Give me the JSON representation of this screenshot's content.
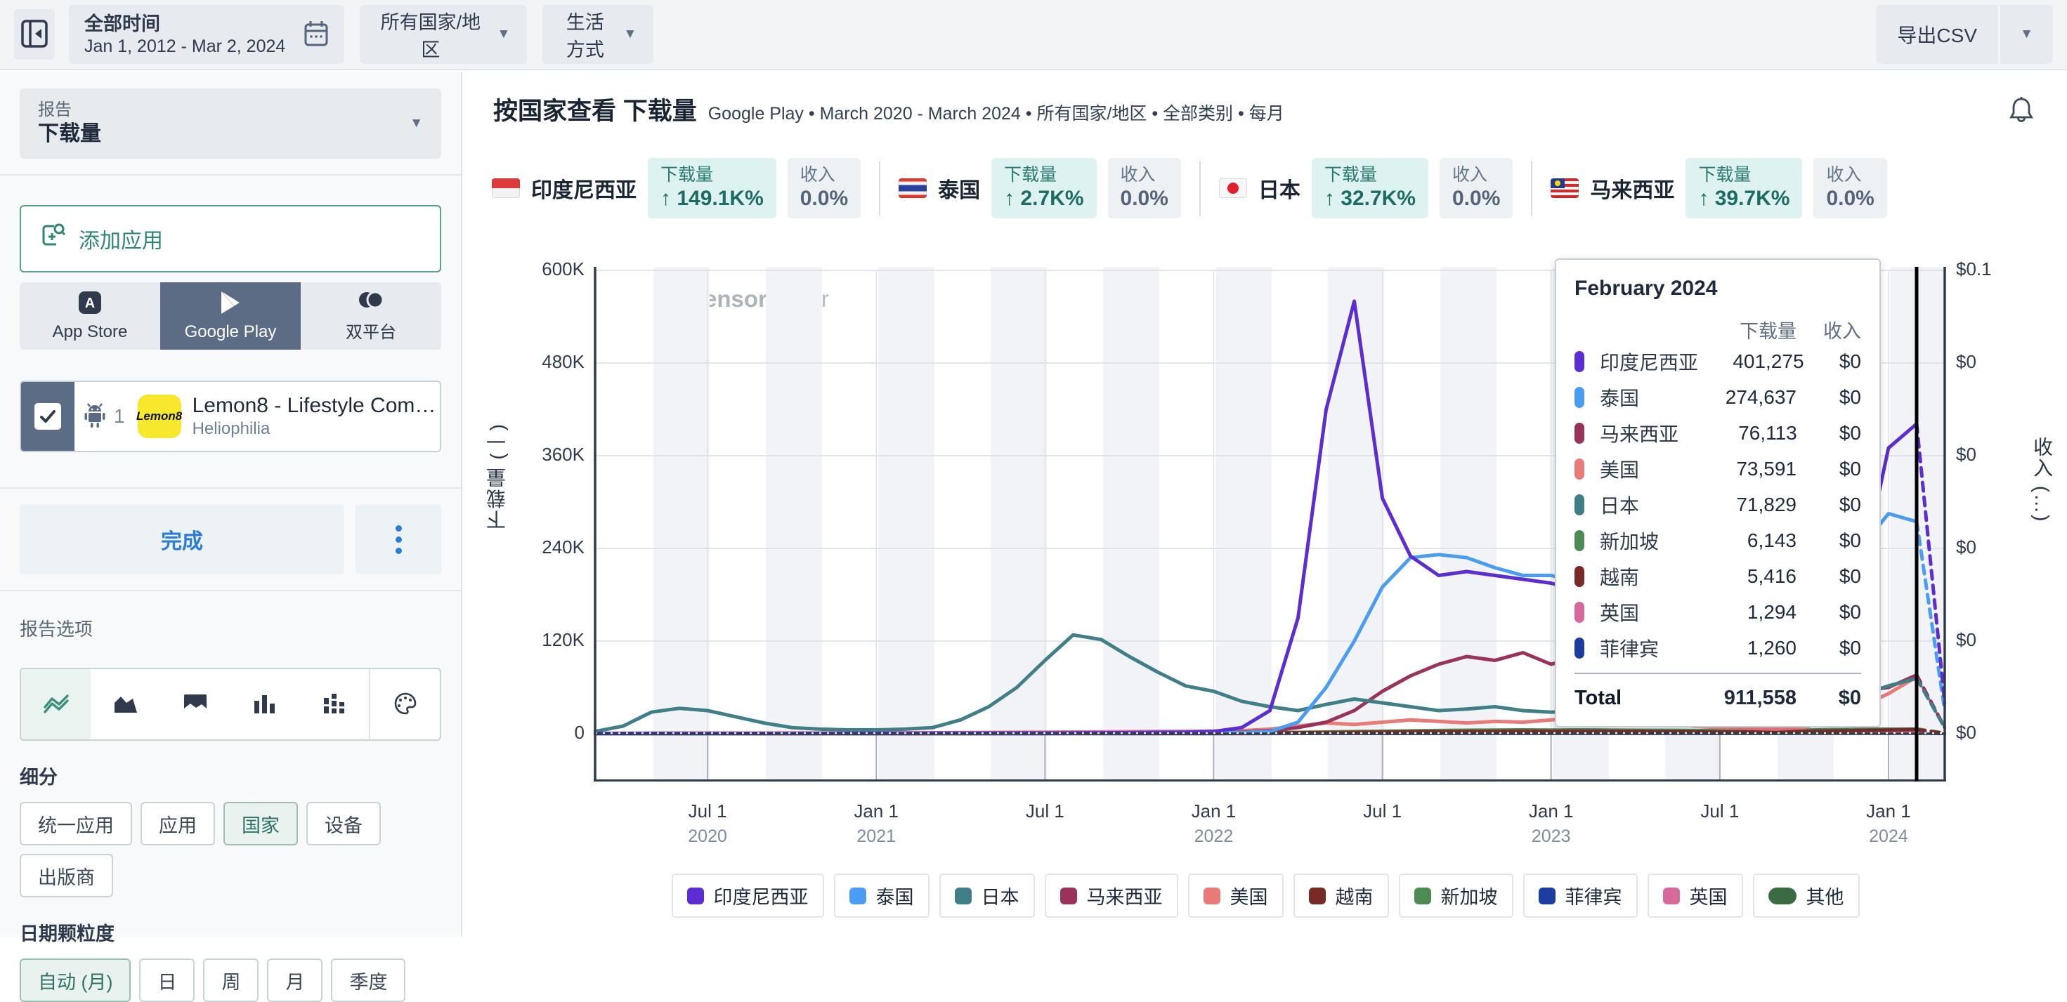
{
  "topbar": {
    "date_filter_label": "全部时间",
    "date_range": "Jan 1, 2012 - Mar 2, 2024",
    "region_filter": "所有国家/地区",
    "category_filter": "生活方式",
    "export_label": "导出CSV"
  },
  "sidebar": {
    "report_label": "报告",
    "report_value": "下载量",
    "add_app_label": "添加应用",
    "platform_tabs": [
      {
        "label": "App Store",
        "icon": "app-store-icon",
        "selected": false
      },
      {
        "label": "Google Play",
        "icon": "google-play-icon",
        "selected": true
      },
      {
        "label": "双平台",
        "icon": "dual-platform-icon",
        "selected": false
      }
    ],
    "app": {
      "checked": true,
      "rank": "1",
      "icon_text": "Lemon8",
      "icon_bg": "#f6e82d",
      "name": "Lemon8 - Lifestyle Com…",
      "publisher": "Heliophilia"
    },
    "done_label": "完成",
    "report_options_label": "报告选项",
    "chart_types": [
      {
        "icon": "line-chart-icon",
        "selected": true
      },
      {
        "icon": "area-chart-icon",
        "selected": false
      },
      {
        "icon": "stacked-area-chart-icon",
        "selected": false
      },
      {
        "icon": "bar-chart-icon",
        "selected": false
      },
      {
        "icon": "stacked-bar-chart-icon",
        "selected": false
      }
    ],
    "palette_icon": "palette-icon",
    "segment_label": "细分",
    "segments": [
      {
        "label": "统一应用",
        "selected": false
      },
      {
        "label": "应用",
        "selected": false
      },
      {
        "label": "国家",
        "selected": true
      },
      {
        "label": "设备",
        "selected": false
      },
      {
        "label": "出版商",
        "selected": false
      }
    ],
    "granularity_label": "日期颗粒度",
    "granularities": [
      {
        "label": "自动 (月)",
        "selected": true
      },
      {
        "label": "日",
        "selected": false
      },
      {
        "label": "周",
        "selected": false
      },
      {
        "label": "月",
        "selected": false
      },
      {
        "label": "季度",
        "selected": false
      }
    ]
  },
  "main": {
    "title": "按国家查看 下载量",
    "subtitle": "Google Play • March 2020 - March 2024 • 所有国家/地区 • 全部类别 • 每月",
    "watermark_a": "Sensor",
    "watermark_b": "Tower",
    "stats": [
      {
        "country": "印度尼西亚",
        "flag": "id",
        "downloads_label": "下载量",
        "downloads_change": "↑ 149.1K%",
        "revenue_label": "收入",
        "revenue_change": "0.0%"
      },
      {
        "country": "泰国",
        "flag": "th",
        "downloads_label": "下载量",
        "downloads_change": "↑ 2.7K%",
        "revenue_label": "收入",
        "revenue_change": "0.0%"
      },
      {
        "country": "日本",
        "flag": "jp",
        "downloads_label": "下载量",
        "downloads_change": "↑ 32.7K%",
        "revenue_label": "收入",
        "revenue_change": "0.0%"
      },
      {
        "country": "马来西亚",
        "flag": "my",
        "downloads_label": "下载量",
        "downloads_change": "↑ 39.7K%",
        "revenue_label": "收入",
        "revenue_change": "0.0%"
      }
    ]
  },
  "tooltip": {
    "title": "February 2024",
    "col_downloads": "下载量",
    "col_revenue": "收入",
    "rows": [
      {
        "label": "印度尼西亚",
        "color": "#5c2dd1",
        "downloads": "401,275",
        "revenue": "$0"
      },
      {
        "label": "泰国",
        "color": "#4a9df2",
        "downloads": "274,637",
        "revenue": "$0"
      },
      {
        "label": "马来西亚",
        "color": "#993359",
        "downloads": "76,113",
        "revenue": "$0"
      },
      {
        "label": "美国",
        "color": "#e87b78",
        "downloads": "73,591",
        "revenue": "$0"
      },
      {
        "label": "日本",
        "color": "#417f88",
        "downloads": "71,829",
        "revenue": "$0"
      },
      {
        "label": "新加坡",
        "color": "#4e8b54",
        "downloads": "6,143",
        "revenue": "$0"
      },
      {
        "label": "越南",
        "color": "#772a26",
        "downloads": "5,416",
        "revenue": "$0"
      },
      {
        "label": "英国",
        "color": "#d76a9c",
        "downloads": "1,294",
        "revenue": "$0"
      },
      {
        "label": "菲律宾",
        "color": "#1d3da1",
        "downloads": "1,260",
        "revenue": "$0"
      }
    ],
    "total_label": "Total",
    "total_downloads": "911,558",
    "total_revenue": "$0"
  },
  "chart_data": {
    "type": "line",
    "title": "按国家查看 下载量",
    "ylabel_left": "下载量 (一)",
    "ylabel_right": "收入 (…)",
    "ylim": [
      0,
      600000
    ],
    "grid": true,
    "legend_position": "bottom",
    "hovered_point": "2024-02",
    "yticks_left": [
      "600K",
      "480K",
      "360K",
      "240K",
      "120K",
      "0"
    ],
    "yticks_right": [
      "$0.1",
      "$0",
      "$0",
      "$0",
      "$0",
      "$0"
    ],
    "xticks": [
      {
        "i": 4,
        "l1": "Jul 1",
        "l2": "2020"
      },
      {
        "i": 10,
        "l1": "Jan 1",
        "l2": "2021"
      },
      {
        "i": 16,
        "l1": "Jul 1",
        "l2": ""
      },
      {
        "i": 22,
        "l1": "Jan 1",
        "l2": "2022"
      },
      {
        "i": 28,
        "l1": "Jul 1",
        "l2": ""
      },
      {
        "i": 34,
        "l1": "Jan 1",
        "l2": "2023"
      },
      {
        "i": 40,
        "l1": "Jul 1",
        "l2": ""
      },
      {
        "i": 46,
        "l1": "Jan 1",
        "l2": "2024"
      }
    ],
    "months": [
      "2020-03",
      "2020-04",
      "2020-05",
      "2020-06",
      "2020-07",
      "2020-08",
      "2020-09",
      "2020-10",
      "2020-11",
      "2020-12",
      "2021-01",
      "2021-02",
      "2021-03",
      "2021-04",
      "2021-05",
      "2021-06",
      "2021-07",
      "2021-08",
      "2021-09",
      "2021-10",
      "2021-11",
      "2021-12",
      "2022-01",
      "2022-02",
      "2022-03",
      "2022-04",
      "2022-05",
      "2022-06",
      "2022-07",
      "2022-08",
      "2022-09",
      "2022-10",
      "2022-11",
      "2022-12",
      "2023-01",
      "2023-02",
      "2023-03",
      "2023-04",
      "2023-05",
      "2023-06",
      "2023-07",
      "2023-08",
      "2023-09",
      "2023-10",
      "2023-11",
      "2023-12",
      "2024-01",
      "2024-02",
      "2024-03"
    ],
    "render_order": [
      "other",
      "ph",
      "gb",
      "sg",
      "vn",
      "us",
      "my",
      "jp",
      "th",
      "id"
    ],
    "legend_order": [
      "id",
      "th",
      "jp",
      "my",
      "us",
      "vn",
      "sg",
      "ph",
      "gb",
      "other"
    ],
    "series": [
      {
        "id": "id",
        "name": "印度尼西亚",
        "color": "#5c2dd1",
        "values": [
          300,
          300,
          400,
          400,
          500,
          500,
          500,
          500,
          500,
          500,
          600,
          600,
          700,
          800,
          900,
          1000,
          1000,
          1200,
          1300,
          1500,
          1800,
          2000,
          3000,
          8000,
          30000,
          150000,
          420000,
          560000,
          305000,
          230000,
          205000,
          210000,
          205000,
          200000,
          195000,
          185000,
          165000,
          150000,
          135000,
          120000,
          115000,
          110000,
          105000,
          112000,
          140000,
          200000,
          370000,
          401275,
          40000
        ]
      },
      {
        "id": "th",
        "name": "泰国",
        "color": "#4a9df2",
        "values": [
          100,
          150,
          200,
          200,
          250,
          250,
          300,
          300,
          300,
          350,
          350,
          400,
          400,
          450,
          500,
          500,
          550,
          600,
          600,
          700,
          800,
          900,
          1000,
          1500,
          3000,
          15000,
          60000,
          120000,
          190000,
          228000,
          232000,
          228000,
          215000,
          205000,
          205000,
          195000,
          175000,
          160000,
          150000,
          140000,
          135000,
          140000,
          150000,
          170000,
          205000,
          240000,
          285000,
          274637,
          30000
        ]
      },
      {
        "id": "jp",
        "name": "日本",
        "color": "#417f88",
        "values": [
          3000,
          10000,
          28000,
          33000,
          30000,
          22000,
          14000,
          8000,
          6000,
          5000,
          5000,
          6000,
          8000,
          18000,
          35000,
          60000,
          95000,
          128000,
          122000,
          100000,
          80000,
          62000,
          55000,
          42000,
          35000,
          30000,
          38000,
          45000,
          40000,
          35000,
          30000,
          32000,
          35000,
          30000,
          28000,
          30000,
          26000,
          24000,
          22000,
          20000,
          18000,
          18000,
          20000,
          25000,
          35000,
          50000,
          62000,
          71829,
          8000
        ]
      },
      {
        "id": "my",
        "name": "马来西亚",
        "color": "#993359",
        "values": [
          200,
          250,
          300,
          300,
          350,
          350,
          400,
          400,
          450,
          500,
          500,
          550,
          600,
          650,
          700,
          750,
          800,
          850,
          900,
          950,
          1000,
          1100,
          1200,
          2000,
          4000,
          8000,
          15000,
          30000,
          55000,
          75000,
          90000,
          100000,
          95000,
          105000,
          90000,
          100000,
          95000,
          85000,
          45000,
          30000,
          28000,
          26000,
          25000,
          28000,
          40000,
          55000,
          60000,
          76113,
          8000
        ]
      },
      {
        "id": "us",
        "name": "美国",
        "color": "#e87b78",
        "values": [
          500,
          600,
          700,
          800,
          800,
          900,
          900,
          1000,
          1000,
          1100,
          1200,
          1300,
          1400,
          1500,
          1700,
          1900,
          2100,
          2300,
          2500,
          2700,
          2900,
          3100,
          3500,
          4000,
          6000,
          10000,
          14000,
          12000,
          15000,
          18000,
          16000,
          14000,
          16000,
          15000,
          18000,
          20000,
          25000,
          125000,
          18000,
          10000,
          8000,
          7000,
          6000,
          8000,
          18000,
          35000,
          52000,
          73591,
          8000
        ]
      },
      {
        "id": "vn",
        "name": "越南",
        "color": "#772a26",
        "values": [
          100,
          120,
          150,
          150,
          180,
          180,
          200,
          200,
          220,
          250,
          250,
          280,
          300,
          320,
          350,
          380,
          400,
          420,
          450,
          480,
          500,
          550,
          600,
          700,
          900,
          1200,
          1500,
          1800,
          2100,
          2400,
          2600,
          2800,
          3000,
          3200,
          3000,
          3200,
          3000,
          2800,
          2600,
          2400,
          2200,
          2300,
          2500,
          2800,
          3500,
          4200,
          4800,
          5416,
          600
        ]
      },
      {
        "id": "sg",
        "name": "新加坡",
        "color": "#4e8b54",
        "values": [
          150,
          180,
          220,
          250,
          250,
          280,
          280,
          300,
          320,
          350,
          380,
          400,
          420,
          450,
          480,
          500,
          550,
          600,
          650,
          700,
          750,
          800,
          900,
          1100,
          1400,
          1800,
          2300,
          2800,
          3300,
          3800,
          4200,
          4500,
          4800,
          5000,
          4800,
          5000,
          4800,
          4600,
          4400,
          4200,
          4000,
          4100,
          4300,
          4700,
          5300,
          5800,
          6000,
          6143,
          700
        ]
      },
      {
        "id": "ph",
        "name": "菲律宾",
        "color": "#1d3da1",
        "values": [
          40,
          50,
          60,
          70,
          70,
          80,
          80,
          90,
          90,
          100,
          110,
          120,
          130,
          140,
          150,
          160,
          170,
          180,
          190,
          200,
          220,
          240,
          280,
          320,
          370,
          420,
          470,
          520,
          570,
          620,
          670,
          720,
          770,
          820,
          780,
          820,
          800,
          780,
          760,
          740,
          720,
          740,
          780,
          880,
          980,
          1080,
          1180,
          1260,
          140
        ]
      },
      {
        "id": "gb",
        "name": "英国",
        "color": "#d76a9c",
        "values": [
          50,
          60,
          70,
          80,
          80,
          90,
          90,
          100,
          100,
          110,
          120,
          130,
          140,
          150,
          160,
          170,
          180,
          190,
          200,
          220,
          240,
          260,
          300,
          350,
          400,
          450,
          500,
          550,
          600,
          650,
          700,
          750,
          800,
          850,
          800,
          850,
          820,
          800,
          780,
          760,
          740,
          760,
          800,
          900,
          1000,
          1100,
          1200,
          1294,
          150
        ]
      },
      {
        "id": "other",
        "name": "其他",
        "color": "#3a6b42",
        "values": [
          500,
          550,
          600,
          650,
          650,
          700,
          700,
          750,
          750,
          800,
          850,
          900,
          950,
          1000,
          1050,
          1100,
          1150,
          1200,
          1250,
          1300,
          1350,
          1400,
          1500,
          1600,
          1700,
          1800,
          1900,
          2000,
          2000,
          2000,
          2000,
          2000,
          2000,
          2000,
          1900,
          1900,
          1800,
          1800,
          1700,
          1700,
          1600,
          1700,
          1800,
          1900,
          2000,
          2100,
          2200,
          2300,
          300
        ]
      },
      {
        "id": "revenue_all",
        "name": "收入(全部)",
        "color": "#dff0ee",
        "style": "dotted",
        "values": [
          0,
          0,
          0,
          0,
          0,
          0,
          0,
          0,
          0,
          0,
          0,
          0,
          0,
          0,
          0,
          0,
          0,
          0,
          0,
          0,
          0,
          0,
          0,
          0,
          0,
          0,
          0,
          0,
          0,
          0,
          0,
          0,
          0,
          0,
          0,
          0,
          0,
          0,
          0,
          0,
          0,
          0,
          0,
          0,
          0,
          0,
          0,
          0,
          0
        ]
      }
    ]
  }
}
